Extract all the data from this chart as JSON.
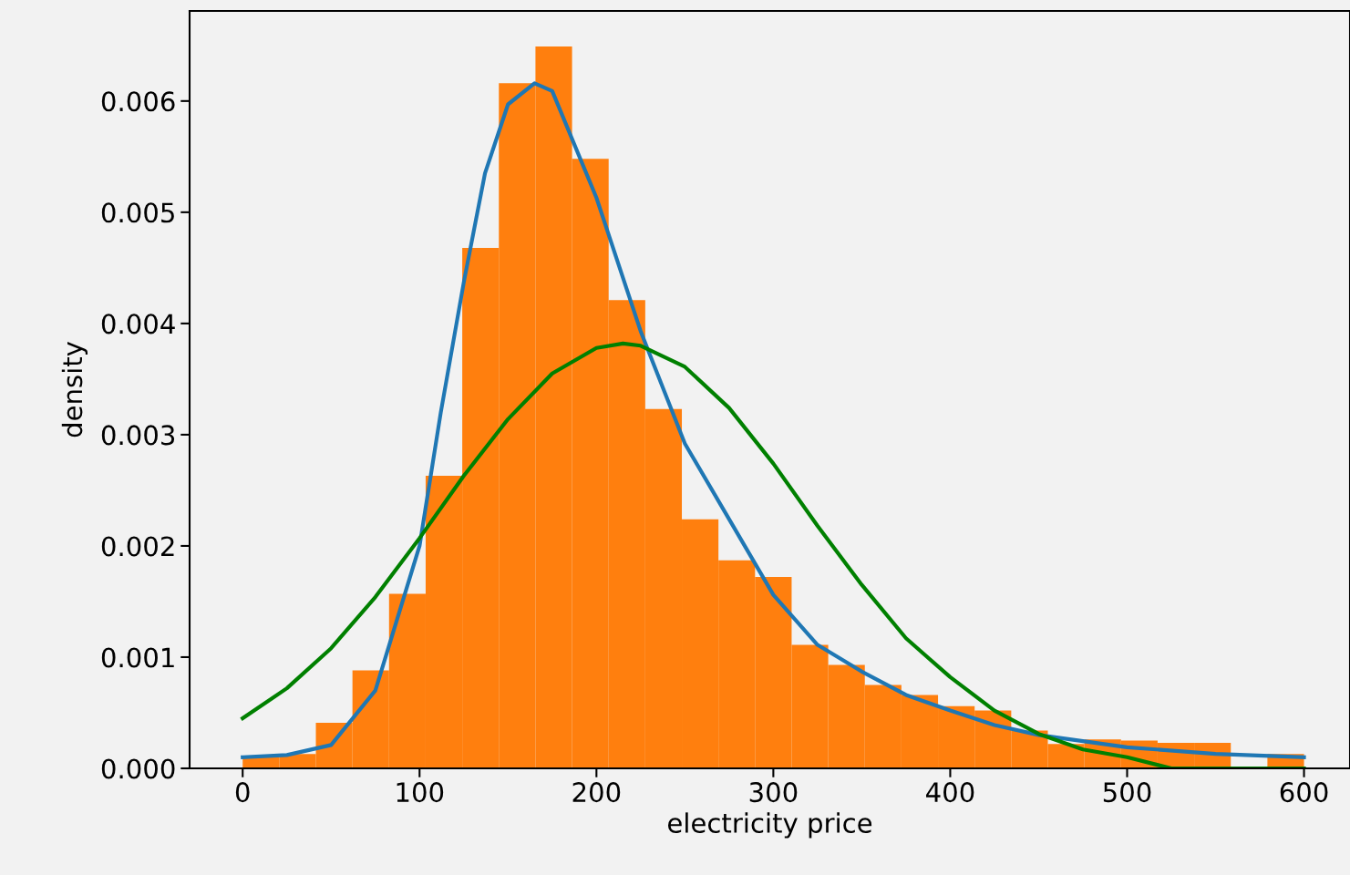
{
  "chart_data": {
    "type": "histogram",
    "xlabel": "electricity price",
    "ylabel": "density",
    "bins": [
      0,
      20.69,
      41.38,
      62.07,
      82.76,
      103.45,
      124.14,
      144.83,
      165.52,
      186.21,
      206.9,
      227.59,
      248.28,
      268.97,
      289.66,
      310.34,
      331.03,
      351.72,
      372.41,
      393.1,
      413.79,
      434.48,
      455.17,
      475.86,
      496.55,
      517.24,
      537.93,
      558.62,
      579.31,
      600
    ],
    "series": [
      {
        "color": "#ff7f0e",
        "values": [
          0.0001,
          0.00013,
          0.00041,
          0.00088,
          0.00157,
          0.00263,
          0.00468,
          0.00616,
          0.00649,
          0.00548,
          0.00421,
          0.00323,
          0.00224,
          0.00187,
          0.00172,
          0.00111,
          0.00093,
          0.00075,
          0.00066,
          0.00056,
          0.00052,
          0.00034,
          0.00022,
          0.00026,
          0.00025,
          0.00023,
          0.00023,
          0,
          0.00013
        ]
      },
      {
        "type": "line",
        "color": "#1f77b4",
        "x": [
          0,
          25,
          50,
          75,
          100,
          112,
          125,
          137,
          150,
          165,
          175,
          200,
          225,
          250,
          275,
          300,
          325,
          350,
          375,
          400,
          425,
          450,
          500,
          550,
          600
        ],
        "values": [
          0.0001,
          0.00012,
          0.00021,
          0.0007,
          0.002,
          0.0032,
          0.00437,
          0.00535,
          0.00597,
          0.00616,
          0.00609,
          0.00513,
          0.00393,
          0.00292,
          0.00224,
          0.00156,
          0.00111,
          0.00087,
          0.00066,
          0.00052,
          0.00039,
          0.0003,
          0.00019,
          0.00013,
          0.0001
        ]
      },
      {
        "type": "line",
        "color": "#008000",
        "x": [
          0,
          25,
          50,
          75,
          100,
          125,
          150,
          175,
          200,
          215,
          225,
          250,
          275,
          300,
          325,
          350,
          375,
          400,
          425,
          450,
          475,
          500,
          525,
          550,
          575,
          600
        ],
        "values": [
          0.00045,
          0.00072,
          0.00108,
          0.00154,
          0.00207,
          0.00263,
          0.00314,
          0.00355,
          0.00378,
          0.00382,
          0.0038,
          0.00361,
          0.00324,
          0.00274,
          0.00218,
          0.00165,
          0.00117,
          0.00082,
          0.00052,
          0.00031,
          0.00017,
          0.0001,
          0,
          0,
          0,
          0
        ]
      }
    ],
    "xlim": [
      -30,
      626
    ],
    "ylim": [
      0,
      0.00681
    ],
    "xticks": [
      0,
      100,
      200,
      300,
      400,
      500,
      600
    ],
    "yticks": [
      {
        "value": 0,
        "label": "0.000"
      },
      {
        "value": 0.001,
        "label": "0.001"
      },
      {
        "value": 0.002,
        "label": "0.002"
      },
      {
        "value": 0.003,
        "label": "0.003"
      },
      {
        "value": 0.004,
        "label": "0.004"
      },
      {
        "value": 0.005,
        "label": "0.005"
      },
      {
        "value": 0.006,
        "label": "0.006"
      }
    ],
    "grid": false,
    "legend": false
  }
}
